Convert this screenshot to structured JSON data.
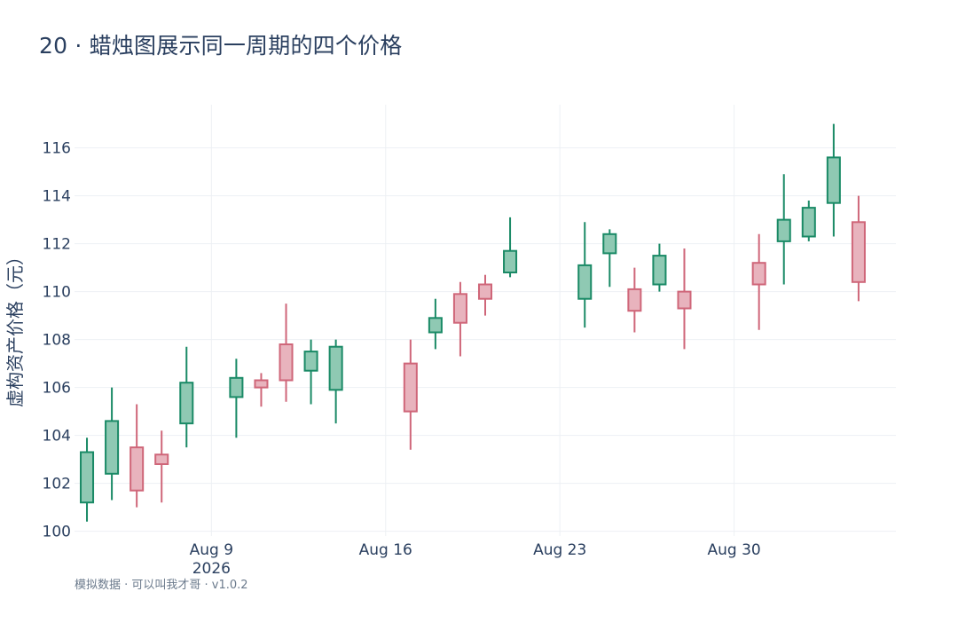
{
  "title": "20 · 蜡烛图展示同一周期的四个价格",
  "footer": "模拟数据 · 可以叫我才哥 · v1.0.2",
  "colors": {
    "up_line": "#1a8a66",
    "up_fill": "#8fc9b3",
    "down_line": "#cf6679",
    "down_fill": "#e8b3bd",
    "grid": "#edf0f4",
    "text": "#2a3f5f"
  },
  "chart_data": {
    "type": "candlestick",
    "title": "20 · 蜡烛图展示同一周期的四个价格",
    "xlabel": "",
    "ylabel": "虚构资产价格（元）",
    "ylim": [
      99.8,
      117.8
    ],
    "yticks": [
      100,
      102,
      104,
      106,
      108,
      110,
      112,
      114,
      116
    ],
    "xlim": [
      "2026-08-03T12:00",
      "2026-09-05T12:00"
    ],
    "xticks": [
      {
        "date": "2026-08-09",
        "label": "Aug 9",
        "sublabel": "2026"
      },
      {
        "date": "2026-08-16",
        "label": "Aug 16",
        "sublabel": ""
      },
      {
        "date": "2026-08-23",
        "label": "Aug 23",
        "sublabel": ""
      },
      {
        "date": "2026-08-30",
        "label": "Aug 30",
        "sublabel": ""
      }
    ],
    "grid": true,
    "candles": [
      {
        "date": "2026-08-04",
        "open": 101.2,
        "high": 103.9,
        "low": 100.4,
        "close": 103.3
      },
      {
        "date": "2026-08-05",
        "open": 102.4,
        "high": 106.0,
        "low": 101.3,
        "close": 104.6
      },
      {
        "date": "2026-08-06",
        "open": 103.5,
        "high": 105.3,
        "low": 101.0,
        "close": 101.7
      },
      {
        "date": "2026-08-07",
        "open": 103.2,
        "high": 104.2,
        "low": 101.2,
        "close": 102.8
      },
      {
        "date": "2026-08-08",
        "open": 104.5,
        "high": 107.7,
        "low": 103.5,
        "close": 106.2
      },
      {
        "date": "2026-08-10",
        "open": 105.6,
        "high": 107.2,
        "low": 103.9,
        "close": 106.4
      },
      {
        "date": "2026-08-11",
        "open": 106.3,
        "high": 106.6,
        "low": 105.2,
        "close": 106.0
      },
      {
        "date": "2026-08-12",
        "open": 107.8,
        "high": 109.5,
        "low": 105.4,
        "close": 106.3
      },
      {
        "date": "2026-08-13",
        "open": 106.7,
        "high": 108.0,
        "low": 105.3,
        "close": 107.5
      },
      {
        "date": "2026-08-14",
        "open": 105.9,
        "high": 108.0,
        "low": 104.5,
        "close": 107.7
      },
      {
        "date": "2026-08-17",
        "open": 107.0,
        "high": 108.0,
        "low": 103.4,
        "close": 105.0
      },
      {
        "date": "2026-08-18",
        "open": 108.3,
        "high": 109.7,
        "low": 107.6,
        "close": 108.9
      },
      {
        "date": "2026-08-19",
        "open": 109.9,
        "high": 110.4,
        "low": 107.3,
        "close": 108.7
      },
      {
        "date": "2026-08-20",
        "open": 110.3,
        "high": 110.7,
        "low": 109.0,
        "close": 109.7
      },
      {
        "date": "2026-08-21",
        "open": 110.8,
        "high": 113.1,
        "low": 110.6,
        "close": 111.7
      },
      {
        "date": "2026-08-24",
        "open": 109.7,
        "high": 112.9,
        "low": 108.5,
        "close": 111.1
      },
      {
        "date": "2026-08-25",
        "open": 111.6,
        "high": 112.6,
        "low": 110.2,
        "close": 112.4
      },
      {
        "date": "2026-08-26",
        "open": 110.1,
        "high": 111.0,
        "low": 108.3,
        "close": 109.2
      },
      {
        "date": "2026-08-27",
        "open": 110.3,
        "high": 112.0,
        "low": 110.0,
        "close": 111.5
      },
      {
        "date": "2026-08-28",
        "open": 110.0,
        "high": 111.8,
        "low": 107.6,
        "close": 109.3
      },
      {
        "date": "2026-08-31",
        "open": 111.2,
        "high": 112.4,
        "low": 108.4,
        "close": 110.3
      },
      {
        "date": "2026-09-01",
        "open": 112.1,
        "high": 114.9,
        "low": 110.3,
        "close": 113.0
      },
      {
        "date": "2026-09-02",
        "open": 112.3,
        "high": 113.8,
        "low": 112.1,
        "close": 113.5
      },
      {
        "date": "2026-09-03",
        "open": 113.7,
        "high": 117.0,
        "low": 112.3,
        "close": 115.6
      },
      {
        "date": "2026-09-04",
        "open": 112.9,
        "high": 114.0,
        "low": 109.6,
        "close": 110.4
      }
    ]
  }
}
